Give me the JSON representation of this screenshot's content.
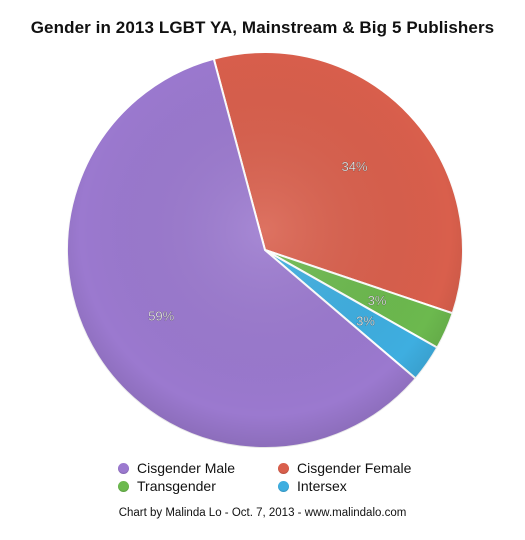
{
  "chart_data": {
    "type": "pie",
    "title": "Gender in 2013 LGBT YA, Mainstream & Big 5 Publishers",
    "slices": [
      {
        "name": "Cisgender Female",
        "value": 34,
        "label": "34%",
        "color": "#d95f4c"
      },
      {
        "name": "Transgender",
        "value": 3,
        "label": "3%",
        "color": "#6cb94e"
      },
      {
        "name": "Intersex",
        "value": 3,
        "label": "3%",
        "color": "#3eaee0"
      },
      {
        "name": "Cisgender Male",
        "value": 59,
        "label": "59%",
        "color": "#9b79cf"
      }
    ],
    "legend": {
      "placement": "bottom",
      "entries": [
        "Cisgender Male",
        "Cisgender Female",
        "Transgender",
        "Intersex"
      ]
    }
  },
  "credit": "Chart by Malinda Lo - Oct. 7, 2013 - www.malindalo.com"
}
